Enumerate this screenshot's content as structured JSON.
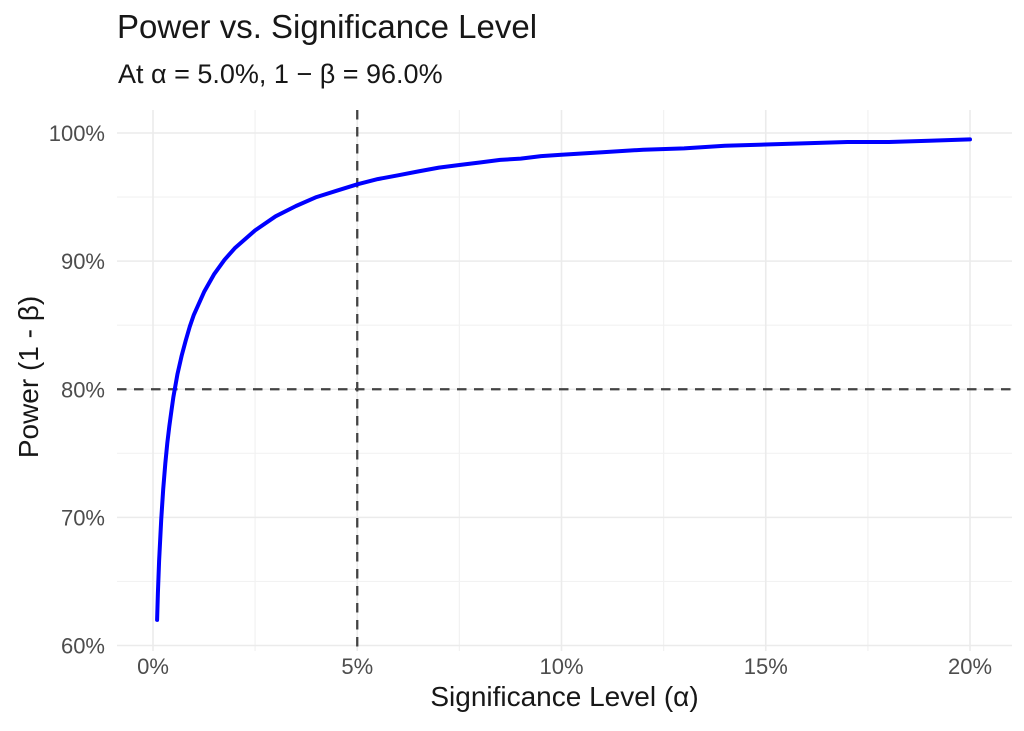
{
  "chart_data": {
    "type": "line",
    "title": "Power vs. Significance Level",
    "subtitle": "At α = 5.0%, 1 − β = 96.0%",
    "xlabel": "Significance Level (α)",
    "ylabel": "Power (1 - β)",
    "xlim": [
      0,
      20
    ],
    "ylim": [
      60,
      100
    ],
    "grid": true,
    "legend_position": "none",
    "x_ticks": [
      {
        "value": 0,
        "label": "0%"
      },
      {
        "value": 5,
        "label": "5%"
      },
      {
        "value": 10,
        "label": "10%"
      },
      {
        "value": 15,
        "label": "15%"
      },
      {
        "value": 20,
        "label": "20%"
      }
    ],
    "y_ticks": [
      {
        "value": 60,
        "label": "60%"
      },
      {
        "value": 70,
        "label": "70%"
      },
      {
        "value": 80,
        "label": "80%"
      },
      {
        "value": 90,
        "label": "90%"
      },
      {
        "value": 100,
        "label": "100%"
      }
    ],
    "x_minor_ticks": [
      2.5,
      7.5,
      12.5,
      17.5
    ],
    "y_minor_ticks": [
      65,
      75,
      85,
      95
    ],
    "reference_lines": [
      {
        "orientation": "vertical",
        "x": 5,
        "style": "dashed"
      },
      {
        "orientation": "horizontal",
        "y": 80,
        "style": "dashed"
      }
    ],
    "highlight_point": {
      "alpha_pct": 5.0,
      "power_pct": 96.0
    },
    "series": [
      {
        "name": "power-curve",
        "color": "#0000FF",
        "x": [
          0.1,
          0.12,
          0.15,
          0.2,
          0.25,
          0.3,
          0.35,
          0.4,
          0.45,
          0.5,
          0.6,
          0.7,
          0.8,
          0.9,
          1.0,
          1.25,
          1.5,
          1.75,
          2.0,
          2.5,
          3.0,
          3.5,
          4.0,
          4.5,
          5.0,
          5.5,
          6.0,
          6.5,
          7.0,
          7.5,
          8.0,
          8.5,
          9.0,
          9.5,
          10,
          11,
          12,
          13,
          14,
          15,
          16,
          17,
          18,
          19,
          20
        ],
        "y": [
          62.0,
          64.1,
          66.6,
          69.8,
          72.2,
          74.2,
          75.8,
          77.1,
          78.3,
          79.4,
          81.2,
          82.6,
          83.8,
          84.9,
          85.8,
          87.6,
          89.0,
          90.1,
          91.0,
          92.4,
          93.5,
          94.3,
          95.0,
          95.5,
          96.0,
          96.4,
          96.7,
          97.0,
          97.3,
          97.5,
          97.7,
          97.9,
          98.0,
          98.2,
          98.3,
          98.5,
          98.7,
          98.8,
          99.0,
          99.1,
          99.2,
          99.3,
          99.3,
          99.4,
          99.5
        ]
      }
    ],
    "colors": {
      "curve": "#0000FF",
      "grid_major": "#EBEBEB",
      "grid_minor": "#F2F2F2",
      "reference": "#434343",
      "tick_text": "#4D4D4D",
      "title_text": "#171717",
      "background": "#FFFFFF"
    }
  }
}
